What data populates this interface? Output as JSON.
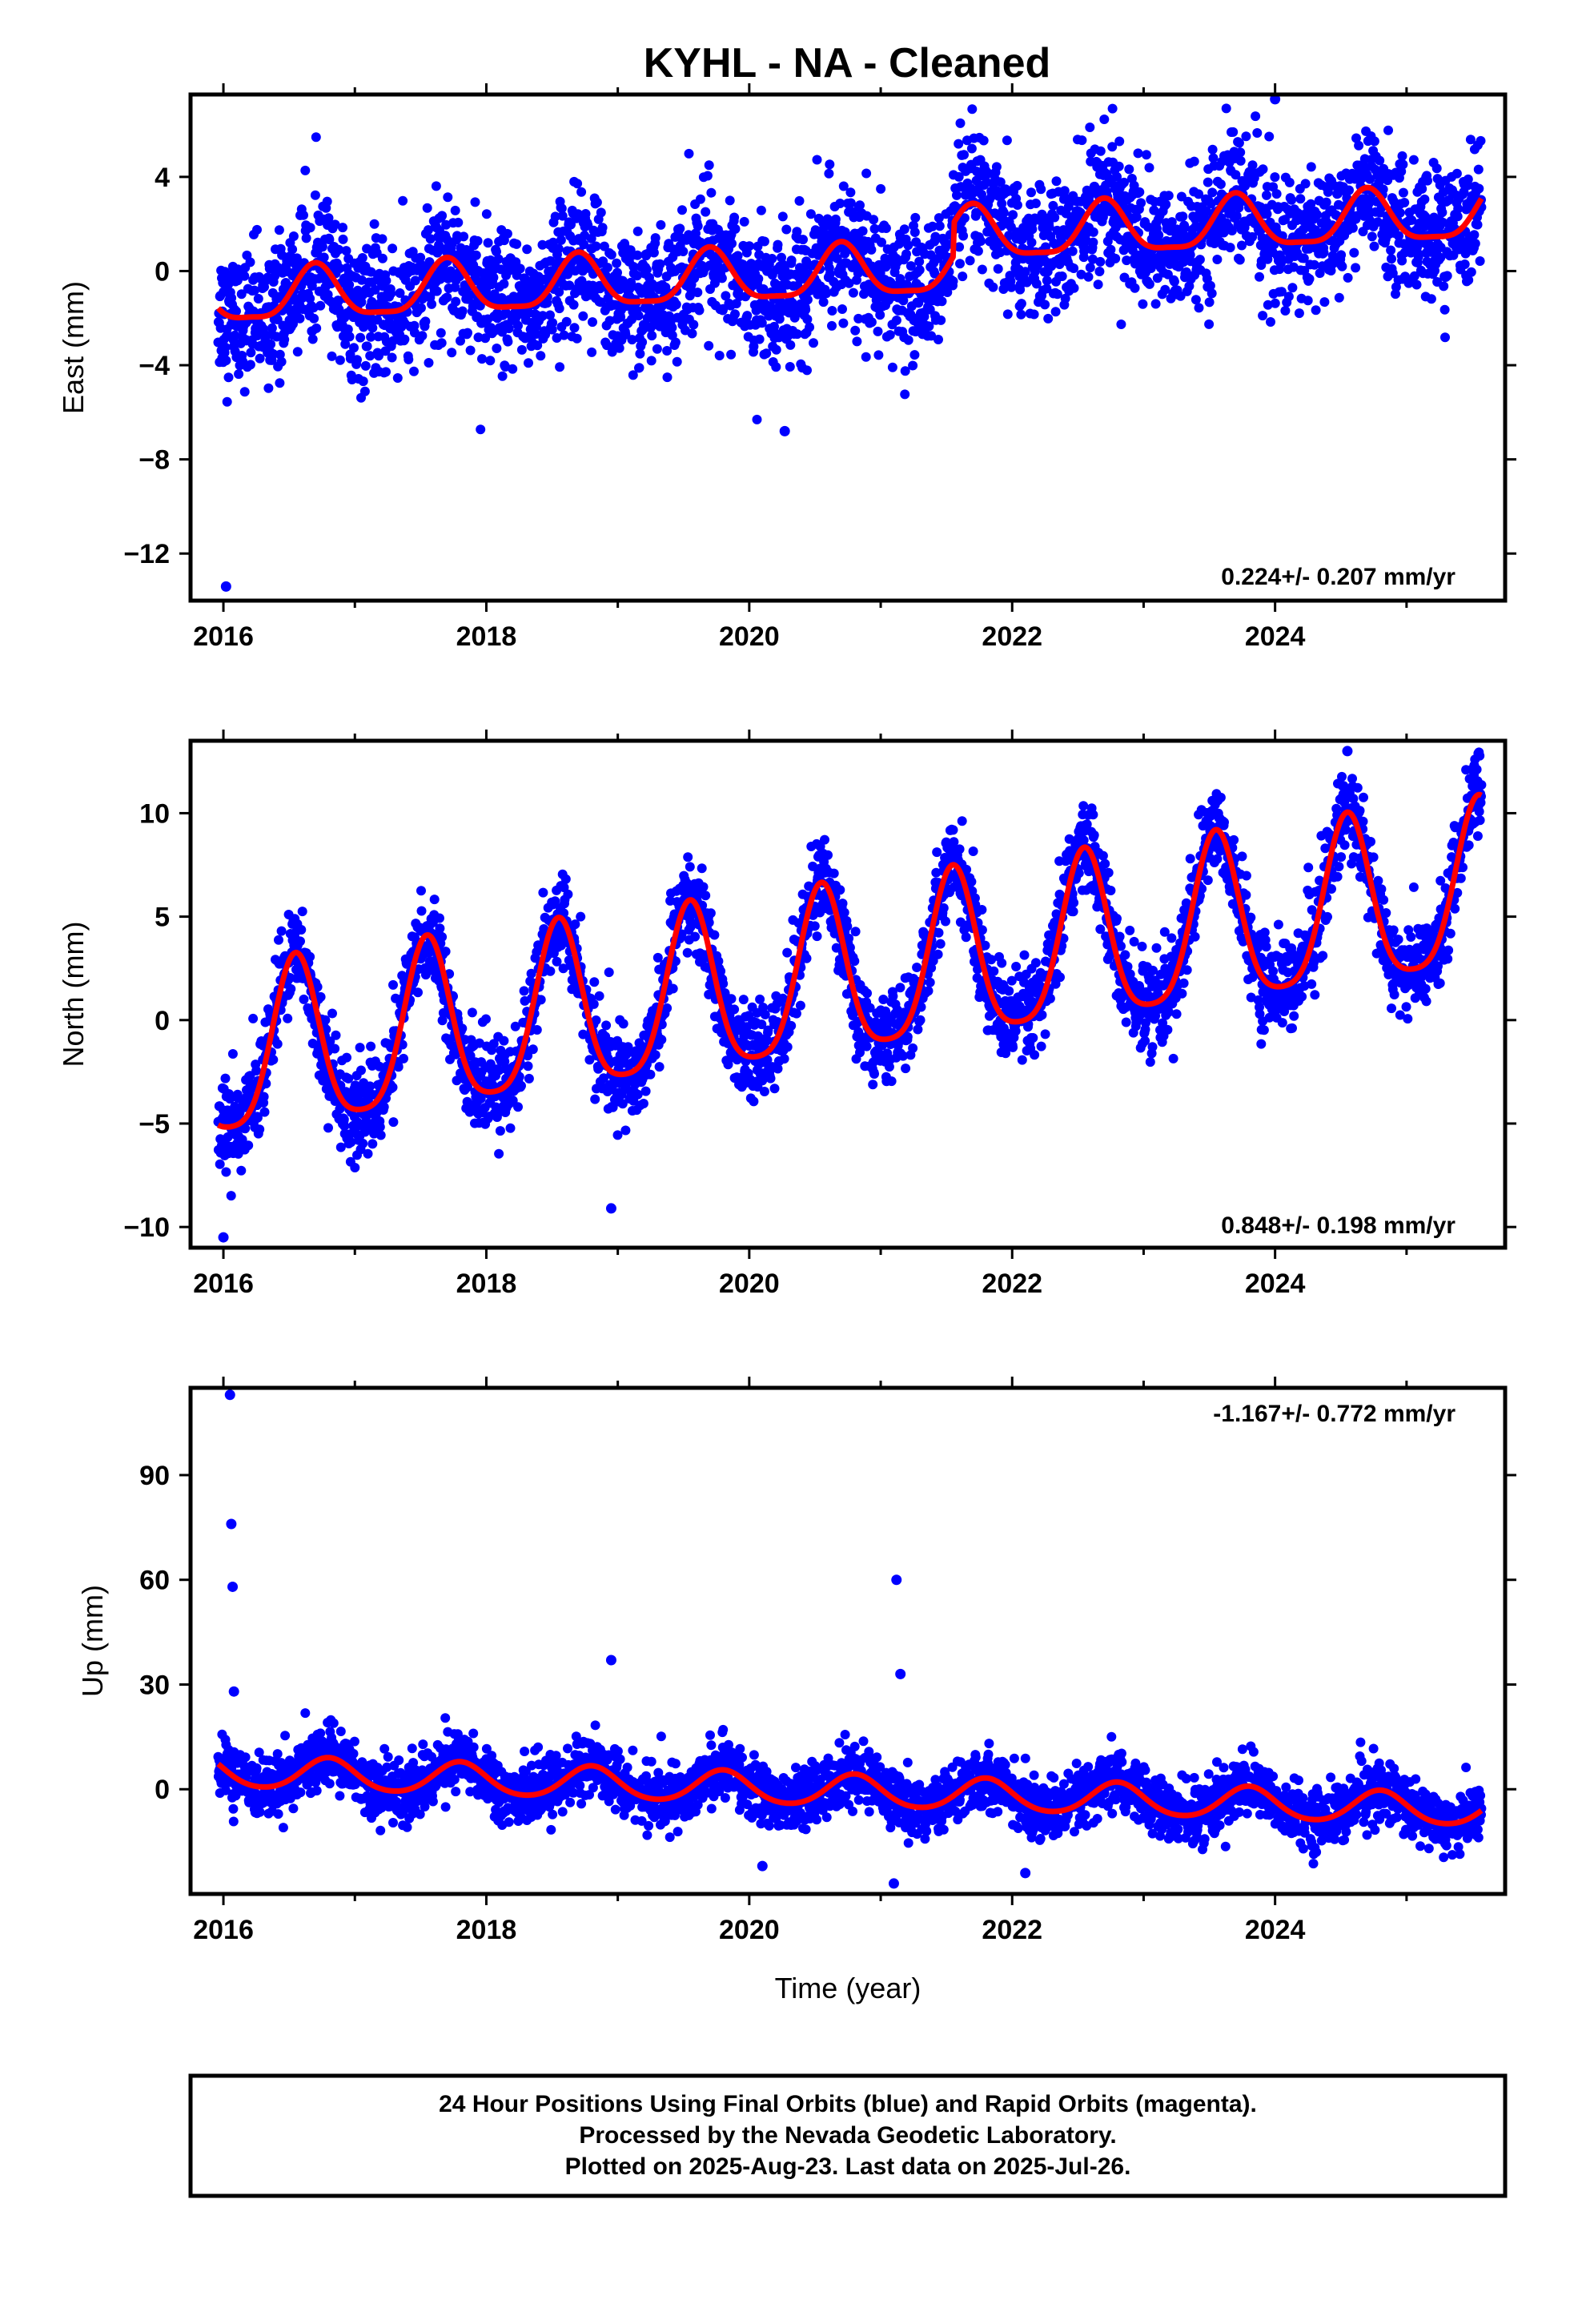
{
  "title": "KYHL  - NA - Cleaned",
  "caption": {
    "line1": "24 Hour Positions Using Final Orbits (blue) and Rapid Orbits (magenta).",
    "line2": "Processed by the Nevada Geodetic Laboratory.",
    "line3": "Plotted on 2025-Aug-23. Last data on 2025-Jul-26."
  },
  "colors": {
    "points": "#0000ff",
    "fit": "#ff0000",
    "frame": "#000000"
  },
  "chart_data": [
    {
      "type": "scatter",
      "ylabel": "East (mm)",
      "rate_label": "0.224+/- 0.207 mm/yr",
      "xlim": [
        2015.75,
        2025.75
      ],
      "ylim": [
        -14,
        7.5
      ],
      "x_ticks": [
        "2016",
        "2018",
        "2020",
        "2022",
        "2024"
      ],
      "y_ticks": [
        "4",
        "0",
        "−4",
        "−8",
        "−12"
      ],
      "model": {
        "description_source": "fitted seasonal model (red)",
        "intercept": -1.2,
        "rate": 0.224,
        "offsets": [
          {
            "x": 2021.55,
            "size": 1.4
          }
        ],
        "annual_amp": 1.1,
        "annual_peak": 2016.7,
        "semiannual_amp": 0.3
      },
      "scatter_sigma": 1.4,
      "outliers": [
        {
          "x": 2016.02,
          "y": -13.4
        },
        {
          "x": 2020.27,
          "y": -6.8
        },
        {
          "x": 2024.0,
          "y": 7.3
        }
      ]
    },
    {
      "type": "scatter",
      "ylabel": "North (mm)",
      "rate_label": "0.848+/- 0.198 mm/yr",
      "xlim": [
        2015.75,
        2025.75
      ],
      "ylim": [
        -11,
        13.5
      ],
      "x_ticks": [
        "2016",
        "2018",
        "2020",
        "2022",
        "2024"
      ],
      "y_ticks": [
        "10",
        "5",
        "0",
        "−5",
        "−10"
      ],
      "model": {
        "description_source": "fitted seasonal model (red)",
        "intercept": -2.0,
        "rate": 0.848,
        "annual_amp": 4.0,
        "annual_peak": 2016.55,
        "semiannual_amp": 0.8
      },
      "scatter_sigma": 1.1,
      "outliers": [
        {
          "x": 2024.55,
          "y": 13.0
        },
        {
          "x": 2016.0,
          "y": -10.5
        },
        {
          "x": 2018.95,
          "y": -9.1
        }
      ]
    },
    {
      "type": "scatter",
      "ylabel": "Up (mm)",
      "xlabel": "Time (year)",
      "rate_label": "-1.167+/- 0.772 mm/yr",
      "xlim": [
        2015.75,
        2025.75
      ],
      "ylim": [
        -30,
        115
      ],
      "x_ticks": [
        "2016",
        "2018",
        "2020",
        "2022",
        "2024"
      ],
      "y_ticks": [
        "90",
        "60",
        "30",
        "0"
      ],
      "model": {
        "description_source": "fitted seasonal model (red)",
        "intercept": 5.0,
        "rate": -1.167,
        "annual_amp": 4.5,
        "annual_peak": 2016.8,
        "semiannual_amp": 0.5
      },
      "scatter_sigma": 4.2,
      "outliers": [
        {
          "x": 2016.05,
          "y": 113
        },
        {
          "x": 2016.06,
          "y": 76
        },
        {
          "x": 2016.07,
          "y": 58
        },
        {
          "x": 2016.08,
          "y": 28
        },
        {
          "x": 2018.95,
          "y": 37
        },
        {
          "x": 2021.12,
          "y": 60
        },
        {
          "x": 2021.15,
          "y": 33
        },
        {
          "x": 2021.1,
          "y": -27
        },
        {
          "x": 2020.1,
          "y": -22
        },
        {
          "x": 2022.1,
          "y": -24
        }
      ]
    }
  ]
}
